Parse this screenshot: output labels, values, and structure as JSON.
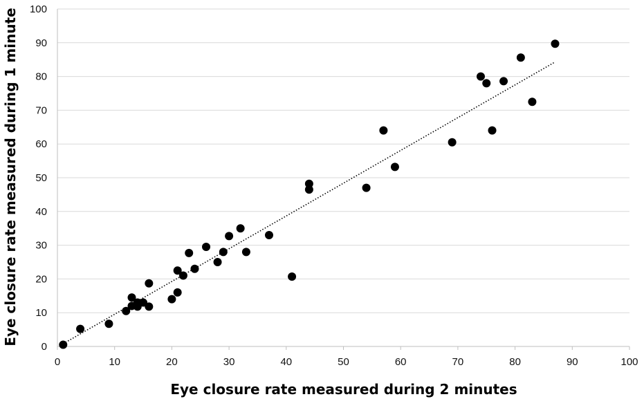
{
  "chart_data": {
    "type": "scatter",
    "title": "",
    "xlabel": "Eye closure rate measured during 2 minutes",
    "ylabel": "Eye closure rate measured during 1 minute",
    "xlim": [
      0,
      100
    ],
    "ylim": [
      0,
      100
    ],
    "x_ticks": [
      0,
      10,
      20,
      30,
      40,
      50,
      60,
      70,
      80,
      90,
      100
    ],
    "y_ticks": [
      0,
      10,
      20,
      30,
      40,
      50,
      60,
      70,
      80,
      90,
      100
    ],
    "grid": "horizontal",
    "legend": "none",
    "marker_color": "#000000",
    "gridline_color": "#d9d9d9",
    "series": [
      {
        "x": [
          1,
          4,
          9,
          12,
          13,
          13,
          14,
          14,
          15,
          16,
          16,
          20,
          21,
          21,
          22,
          23,
          24,
          26,
          28,
          29,
          30,
          32,
          33,
          37,
          41,
          44,
          44,
          54,
          57,
          59,
          69,
          74,
          75,
          76,
          78,
          81,
          83,
          87
        ],
        "y": [
          0.5,
          5.2,
          6.7,
          10.5,
          12,
          14.5,
          11.8,
          13,
          13,
          11.8,
          18.7,
          14,
          16,
          22.5,
          21,
          27.7,
          23,
          29.5,
          25,
          28,
          32.7,
          35,
          28,
          33,
          20.7,
          48.2,
          46.5,
          47,
          64,
          53.2,
          60.5,
          80,
          78,
          64,
          78.6,
          85.6,
          72.5,
          89.7
        ]
      }
    ],
    "trendline": {
      "style": "dotted",
      "x": [
        1,
        87
      ],
      "y": [
        0.8,
        84.3
      ]
    }
  }
}
